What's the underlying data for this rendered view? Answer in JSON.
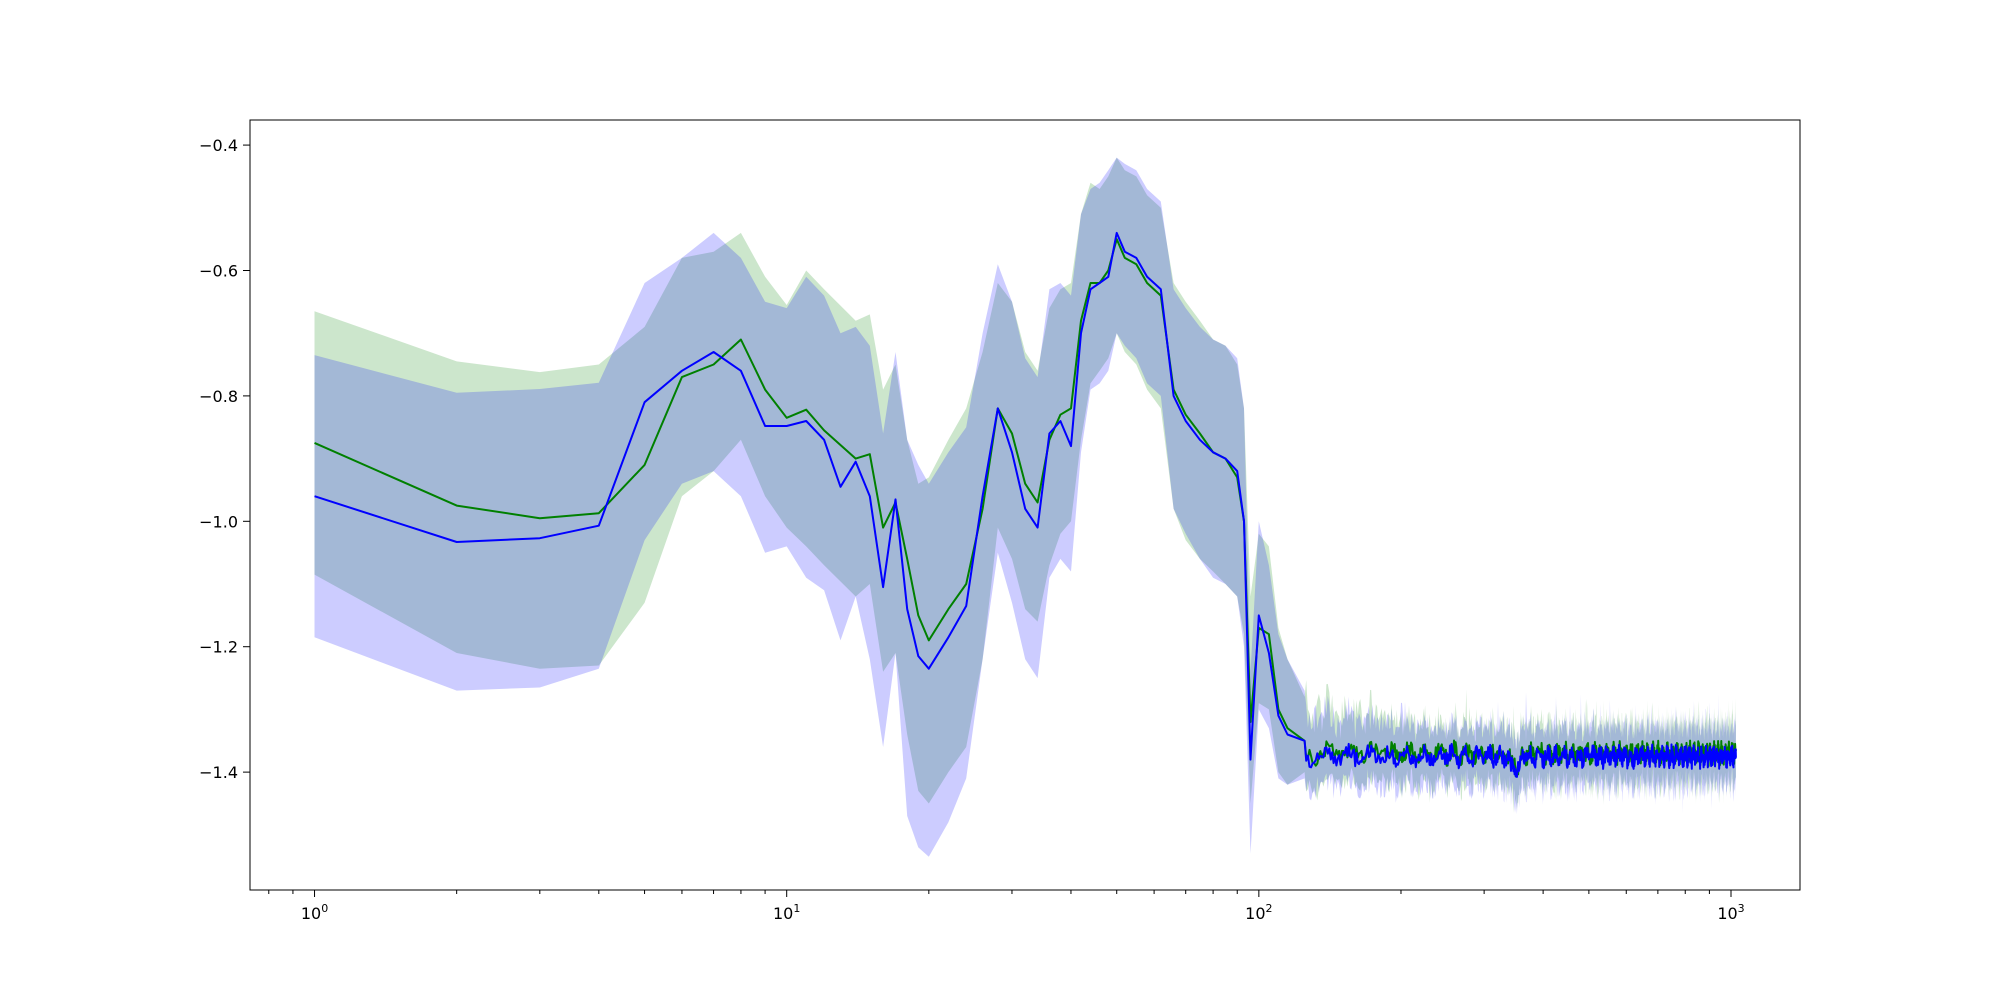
{
  "chart_data": {
    "type": "line",
    "title": "",
    "xlabel": "",
    "ylabel": "",
    "xscale": "log",
    "xlim": [
      0.73,
      1400
    ],
    "ylim": [
      -1.588,
      -0.36
    ],
    "grid": false,
    "legend": "none",
    "x_ticks": [
      {
        "value": 1,
        "base": "10",
        "exp": "0"
      },
      {
        "value": 10,
        "base": "10",
        "exp": "1"
      },
      {
        "value": 100,
        "base": "10",
        "exp": "2"
      },
      {
        "value": 1000,
        "base": "10",
        "exp": "3"
      }
    ],
    "y_ticks": [
      {
        "value": -0.4,
        "label": "−0.4"
      },
      {
        "value": -0.6,
        "label": "−0.6"
      },
      {
        "value": -0.8,
        "label": "−0.8"
      },
      {
        "value": -1.0,
        "label": "−1.0"
      },
      {
        "value": -1.2,
        "label": "−1.2"
      },
      {
        "value": -1.4,
        "label": "−1.4"
      }
    ],
    "noise_x_start": 125,
    "noise_x_end": 1024,
    "series": [
      {
        "color": "#008000",
        "band_color": "#008000",
        "band_opacity": 0.2,
        "x": [
          1,
          2,
          3,
          4,
          5,
          6,
          7,
          8,
          9,
          10,
          11,
          12,
          14,
          15,
          16,
          17,
          18,
          19,
          20,
          22,
          24,
          26,
          28,
          30,
          32,
          34,
          36,
          38,
          40,
          42,
          44,
          46,
          48,
          50,
          52,
          55,
          58,
          62,
          66,
          70,
          75,
          80,
          85,
          90,
          93,
          96,
          100,
          105,
          110,
          115,
          125
        ],
        "y": [
          -0.875,
          -0.975,
          -0.995,
          -0.987,
          -0.91,
          -0.77,
          -0.75,
          -0.71,
          -0.79,
          -0.835,
          -0.822,
          -0.855,
          -0.9,
          -0.893,
          -1.01,
          -0.97,
          -1.06,
          -1.15,
          -1.19,
          -1.14,
          -1.1,
          -0.98,
          -0.82,
          -0.86,
          -0.94,
          -0.97,
          -0.87,
          -0.83,
          -0.82,
          -0.68,
          -0.62,
          -0.62,
          -0.6,
          -0.55,
          -0.58,
          -0.59,
          -0.62,
          -0.64,
          -0.79,
          -0.83,
          -0.86,
          -0.89,
          -0.9,
          -0.93,
          -1.0,
          -1.32,
          -1.17,
          -1.18,
          -1.3,
          -1.33,
          -1.35
        ],
        "lower": [
          -1.085,
          -1.21,
          -1.235,
          -1.23,
          -1.13,
          -0.96,
          -0.92,
          -0.87,
          -0.96,
          -1.01,
          -1.04,
          -1.07,
          -1.12,
          -1.1,
          -1.24,
          -1.21,
          -1.34,
          -1.43,
          -1.45,
          -1.4,
          -1.36,
          -1.22,
          -1.01,
          -1.06,
          -1.14,
          -1.16,
          -1.07,
          -1.02,
          -1.0,
          -0.87,
          -0.78,
          -0.76,
          -0.74,
          -0.7,
          -0.73,
          -0.75,
          -0.79,
          -0.82,
          -0.98,
          -1.03,
          -1.06,
          -1.08,
          -1.1,
          -1.12,
          -1.18,
          -1.45,
          -1.29,
          -1.3,
          -1.4,
          -1.42,
          -1.4
        ],
        "upper": [
          -0.665,
          -0.745,
          -0.762,
          -0.75,
          -0.69,
          -0.58,
          -0.57,
          -0.54,
          -0.61,
          -0.655,
          -0.6,
          -0.63,
          -0.68,
          -0.67,
          -0.79,
          -0.75,
          -0.87,
          -0.94,
          -0.93,
          -0.87,
          -0.82,
          -0.73,
          -0.62,
          -0.65,
          -0.73,
          -0.76,
          -0.66,
          -0.63,
          -0.62,
          -0.51,
          -0.46,
          -0.47,
          -0.45,
          -0.42,
          -0.44,
          -0.45,
          -0.48,
          -0.5,
          -0.62,
          -0.65,
          -0.68,
          -0.71,
          -0.72,
          -0.75,
          -0.82,
          -1.12,
          -1.02,
          -1.04,
          -1.17,
          -1.22,
          -1.28
        ],
        "noise_mean": -1.37,
        "noise_half_width": 0.045
      },
      {
        "color": "#0000ff",
        "band_color": "#0000ff",
        "band_opacity": 0.2,
        "x": [
          1,
          2,
          3,
          4,
          5,
          6,
          7,
          8,
          9,
          10,
          11,
          12,
          13,
          14,
          15,
          16,
          17,
          18,
          19,
          20,
          22,
          24,
          26,
          28,
          30,
          32,
          34,
          36,
          38,
          40,
          42,
          44,
          46,
          48,
          50,
          52,
          55,
          58,
          62,
          66,
          70,
          75,
          80,
          85,
          90,
          93,
          96,
          100,
          105,
          110,
          115,
          125
        ],
        "y": [
          -0.96,
          -1.033,
          -1.027,
          -1.007,
          -0.81,
          -0.76,
          -0.73,
          -0.76,
          -0.848,
          -0.848,
          -0.84,
          -0.87,
          -0.945,
          -0.905,
          -0.96,
          -1.105,
          -0.965,
          -1.14,
          -1.215,
          -1.235,
          -1.185,
          -1.135,
          -0.96,
          -0.82,
          -0.89,
          -0.98,
          -1.01,
          -0.86,
          -0.84,
          -0.88,
          -0.7,
          -0.63,
          -0.62,
          -0.61,
          -0.54,
          -0.57,
          -0.58,
          -0.61,
          -0.63,
          -0.8,
          -0.84,
          -0.87,
          -0.89,
          -0.9,
          -0.92,
          -1.0,
          -1.38,
          -1.15,
          -1.21,
          -1.31,
          -1.34,
          -1.35
        ],
        "lower": [
          -1.185,
          -1.27,
          -1.265,
          -1.235,
          -1.03,
          -0.94,
          -0.92,
          -0.96,
          -1.05,
          -1.04,
          -1.09,
          -1.11,
          -1.19,
          -1.12,
          -1.22,
          -1.36,
          -1.21,
          -1.47,
          -1.52,
          -1.535,
          -1.48,
          -1.41,
          -1.22,
          -1.05,
          -1.13,
          -1.22,
          -1.25,
          -1.09,
          -1.06,
          -1.08,
          -0.89,
          -0.79,
          -0.78,
          -0.76,
          -0.7,
          -0.72,
          -0.74,
          -0.78,
          -0.8,
          -0.98,
          -1.02,
          -1.06,
          -1.09,
          -1.1,
          -1.12,
          -1.2,
          -1.53,
          -1.3,
          -1.33,
          -1.41,
          -1.42,
          -1.41
        ],
        "upper": [
          -0.735,
          -0.795,
          -0.789,
          -0.779,
          -0.62,
          -0.58,
          -0.54,
          -0.58,
          -0.65,
          -0.66,
          -0.61,
          -0.64,
          -0.7,
          -0.69,
          -0.72,
          -0.86,
          -0.73,
          -0.87,
          -0.91,
          -0.94,
          -0.89,
          -0.85,
          -0.7,
          -0.59,
          -0.65,
          -0.74,
          -0.77,
          -0.63,
          -0.62,
          -0.64,
          -0.51,
          -0.47,
          -0.46,
          -0.44,
          -0.42,
          -0.43,
          -0.44,
          -0.47,
          -0.49,
          -0.63,
          -0.66,
          -0.69,
          -0.71,
          -0.72,
          -0.74,
          -0.82,
          -1.24,
          -1.0,
          -1.07,
          -1.18,
          -1.22,
          -1.27
        ],
        "noise_mean": -1.375,
        "noise_half_width": 0.045
      }
    ]
  }
}
